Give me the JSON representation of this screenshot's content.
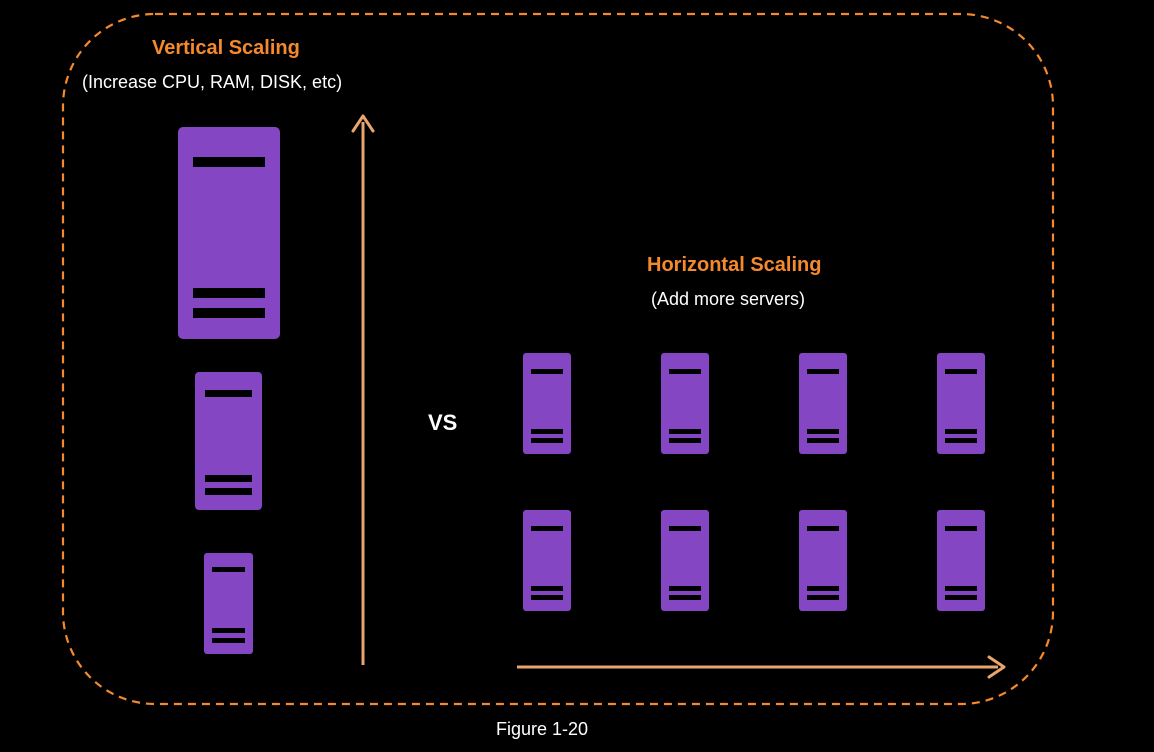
{
  "vertical": {
    "title": "Vertical Scaling",
    "subtitle": "(Increase CPU, RAM, DISK, etc)"
  },
  "horizontal": {
    "title": "Horizontal Scaling",
    "subtitle": "(Add more servers)"
  },
  "vs_label": "VS",
  "caption": "Figure 1-20",
  "colors": {
    "background": "#000000",
    "accent": "#f5892b",
    "server": "#8446c2",
    "server_slot": "#000000",
    "arrow": "#e8a56e",
    "text": "#ffffff"
  },
  "icons": {
    "server": "server-icon",
    "vertical_arrow": "arrow-up-icon",
    "horizontal_arrow": "arrow-right-icon"
  }
}
